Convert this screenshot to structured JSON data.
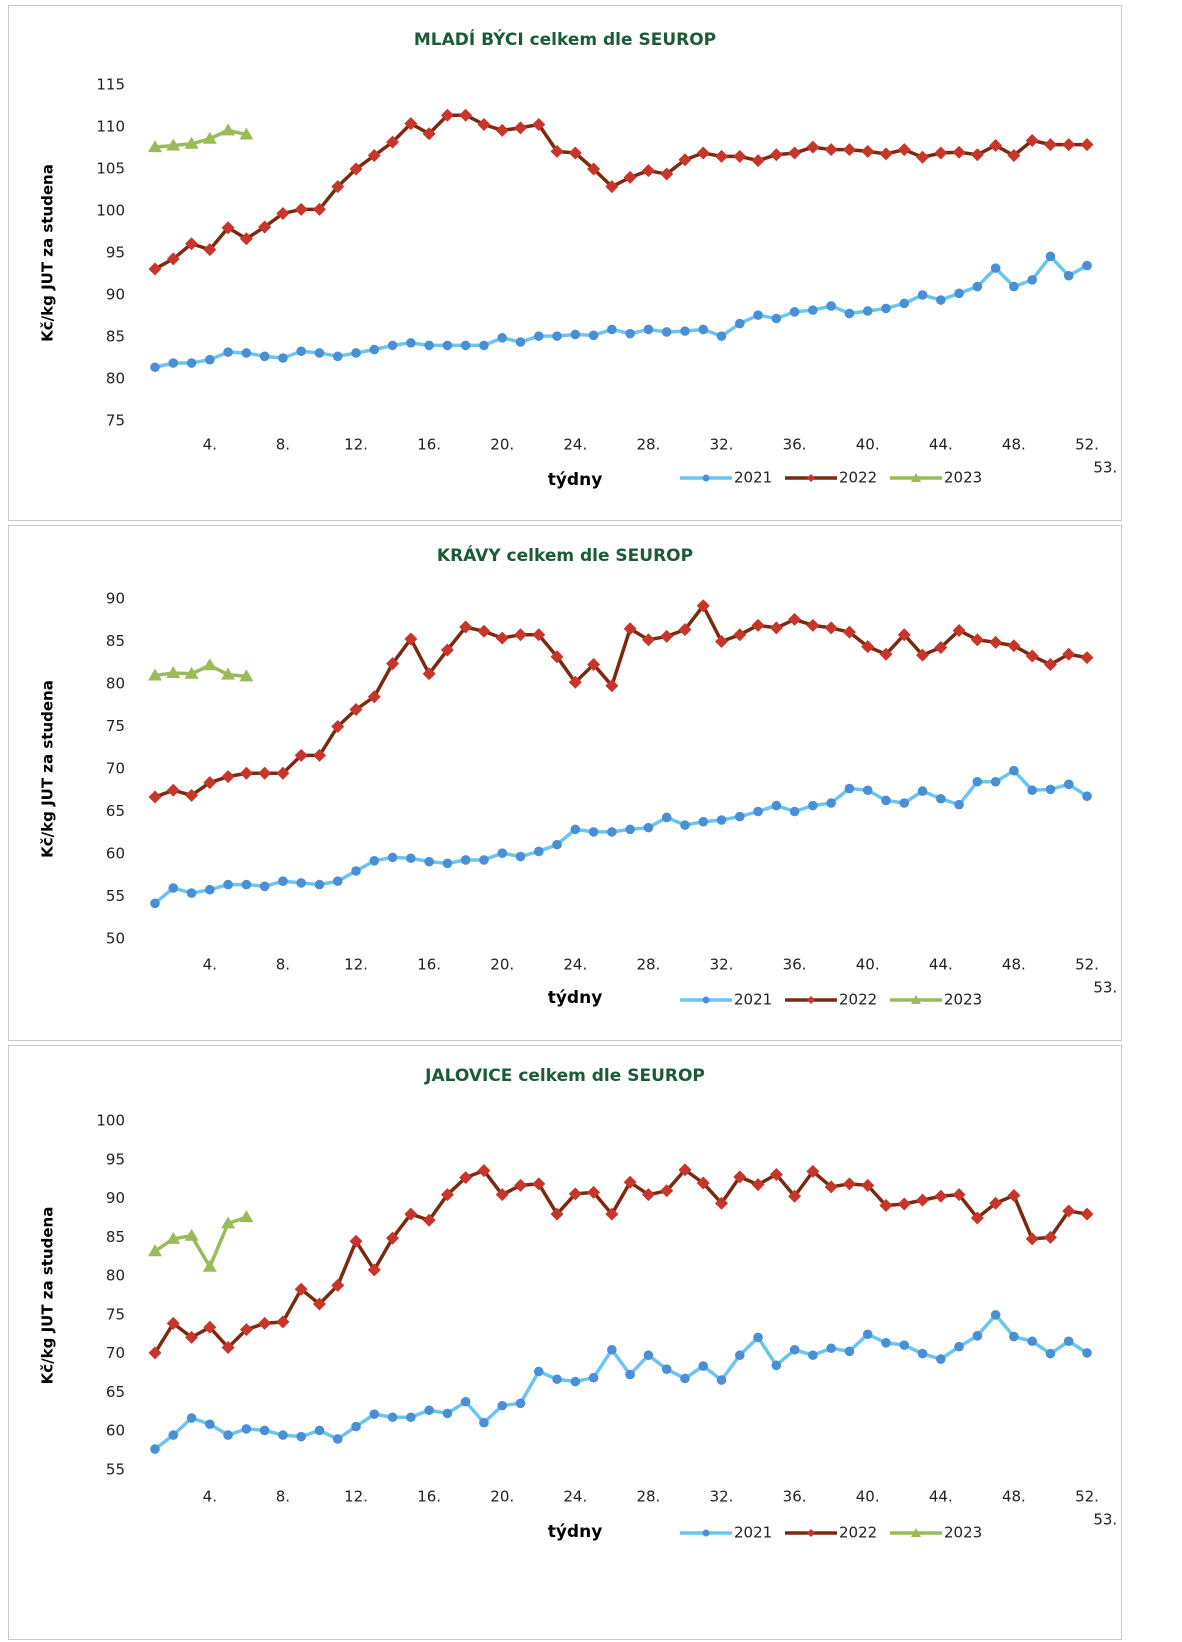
{
  "chart_data": [
    {
      "type": "line",
      "title": "MLADÍ BÝCI celkem dle SEUROP",
      "y_label": "Kč/kg JUT za studena",
      "x_label": "týdny",
      "categories": [
        null,
        null,
        null,
        "4.",
        null,
        null,
        null,
        "8.",
        null,
        null,
        null,
        "12.",
        null,
        null,
        null,
        "16.",
        null,
        null,
        null,
        "20.",
        null,
        null,
        null,
        "24.",
        null,
        null,
        null,
        "28.",
        null,
        null,
        null,
        "32.",
        null,
        null,
        null,
        "36.",
        null,
        null,
        null,
        "40.",
        null,
        null,
        null,
        "44.",
        null,
        null,
        null,
        "48.",
        null,
        null,
        null,
        "52.",
        "53."
      ],
      "ylim": [
        75,
        115
      ],
      "yticks": [
        75,
        80,
        85,
        90,
        95,
        100,
        105,
        110,
        115
      ],
      "grid": false,
      "series": [
        {
          "name": "2021",
          "color": "#6ac6f0",
          "marker": "circle",
          "marker_color": "#4a8fd6",
          "values": [
            81.4,
            81.9,
            81.9,
            82.3,
            83.2,
            83.1,
            82.7,
            82.5,
            83.3,
            83.1,
            82.7,
            83.1,
            83.5,
            84.0,
            84.3,
            84.0,
            84.0,
            84.0,
            84.0,
            84.9,
            84.4,
            85.1,
            85.1,
            85.3,
            85.2,
            85.9,
            85.4,
            85.9,
            85.6,
            85.7,
            85.9,
            85.1,
            86.6,
            87.6,
            87.2,
            88.0,
            88.2,
            88.7,
            87.8,
            88.1,
            88.4,
            89.0,
            90.0,
            89.4,
            90.2,
            91.0,
            93.2,
            91.0,
            91.8,
            94.6,
            92.3,
            93.5,
            null
          ]
        },
        {
          "name": "2022",
          "color": "#7a2a10",
          "marker": "diamond",
          "marker_color": "#c8352b",
          "values": [
            93.1,
            94.3,
            96.1,
            95.4,
            98.0,
            96.7,
            98.1,
            99.7,
            100.2,
            100.2,
            102.9,
            105.0,
            106.6,
            108.2,
            110.4,
            109.2,
            111.4,
            111.4,
            110.3,
            109.6,
            109.9,
            110.3,
            107.1,
            106.9,
            105.0,
            102.9,
            104.0,
            104.8,
            104.4,
            106.1,
            106.9,
            106.5,
            106.5,
            106.0,
            106.7,
            106.9,
            107.6,
            107.3,
            107.3,
            107.1,
            106.8,
            107.3,
            106.4,
            106.9,
            107.0,
            106.7,
            107.8,
            106.6,
            108.4,
            107.9,
            107.9,
            107.9,
            null
          ]
        },
        {
          "name": "2023",
          "color": "#9bbb59",
          "marker": "triangle",
          "marker_color": "#9bbb59",
          "values": [
            107.6,
            107.8,
            108.0,
            108.6,
            109.6,
            109.1,
            null,
            null,
            null,
            null,
            null,
            null,
            null,
            null,
            null,
            null,
            null,
            null,
            null,
            null,
            null,
            null,
            null,
            null,
            null,
            null,
            null,
            null,
            null,
            null,
            null,
            null,
            null,
            null,
            null,
            null,
            null,
            null,
            null,
            null,
            null,
            null,
            null,
            null,
            null,
            null,
            null,
            null,
            null,
            null,
            null,
            null,
            null
          ]
        }
      ]
    },
    {
      "type": "line",
      "title": "KRÁVY celkem dle SEUROP",
      "y_label": "Kč/kg JUT za studena",
      "x_label": "týdny",
      "categories": [
        null,
        null,
        null,
        "4.",
        null,
        null,
        null,
        "8.",
        null,
        null,
        null,
        "12.",
        null,
        null,
        null,
        "16.",
        null,
        null,
        null,
        "20.",
        null,
        null,
        null,
        "24.",
        null,
        null,
        null,
        "28.",
        null,
        null,
        null,
        "32.",
        null,
        null,
        null,
        "36.",
        null,
        null,
        null,
        "40.",
        null,
        null,
        null,
        "44.",
        null,
        null,
        null,
        "48.",
        null,
        null,
        null,
        "52.",
        "53."
      ],
      "ylim": [
        50,
        90
      ],
      "yticks": [
        50,
        55,
        60,
        65,
        70,
        75,
        80,
        85,
        90
      ],
      "grid": false,
      "series": [
        {
          "name": "2021",
          "color": "#6ac6f0",
          "marker": "circle",
          "marker_color": "#4a8fd6",
          "values": [
            54.2,
            56.0,
            55.4,
            55.8,
            56.4,
            56.4,
            56.2,
            56.8,
            56.6,
            56.4,
            56.8,
            58.0,
            59.2,
            59.6,
            59.5,
            59.1,
            58.9,
            59.3,
            59.3,
            60.1,
            59.7,
            60.3,
            61.1,
            62.9,
            62.6,
            62.6,
            62.9,
            63.1,
            64.3,
            63.4,
            63.8,
            64.0,
            64.4,
            65.0,
            65.7,
            65.0,
            65.7,
            66.0,
            67.7,
            67.5,
            66.3,
            66.0,
            67.4,
            66.5,
            65.8,
            68.5,
            68.5,
            69.8,
            67.5,
            67.6,
            68.2,
            66.8,
            null
          ]
        },
        {
          "name": "2022",
          "color": "#7a2a10",
          "marker": "diamond",
          "marker_color": "#c8352b",
          "values": [
            66.7,
            67.5,
            66.9,
            68.4,
            69.1,
            69.5,
            69.5,
            69.5,
            71.6,
            71.6,
            75.0,
            77.0,
            78.5,
            82.4,
            85.3,
            81.2,
            84.0,
            86.7,
            86.2,
            85.4,
            85.8,
            85.8,
            83.2,
            80.2,
            82.3,
            79.8,
            86.5,
            85.2,
            85.6,
            86.4,
            89.2,
            85.0,
            85.8,
            86.9,
            86.6,
            87.6,
            86.9,
            86.6,
            86.1,
            84.4,
            83.5,
            85.8,
            83.4,
            84.3,
            86.3,
            85.2,
            84.9,
            84.5,
            83.3,
            82.3,
            83.5,
            83.1,
            null
          ]
        },
        {
          "name": "2023",
          "color": "#9bbb59",
          "marker": "triangle",
          "marker_color": "#9bbb59",
          "values": [
            81.0,
            81.3,
            81.2,
            82.2,
            81.1,
            80.9,
            null,
            null,
            null,
            null,
            null,
            null,
            null,
            null,
            null,
            null,
            null,
            null,
            null,
            null,
            null,
            null,
            null,
            null,
            null,
            null,
            null,
            null,
            null,
            null,
            null,
            null,
            null,
            null,
            null,
            null,
            null,
            null,
            null,
            null,
            null,
            null,
            null,
            null,
            null,
            null,
            null,
            null,
            null,
            null,
            null,
            null,
            null
          ]
        }
      ]
    },
    {
      "type": "line",
      "title": "JALOVICE celkem dle SEUROP",
      "y_label": "Kč/kg JUT za studena",
      "x_label": "týdny",
      "categories": [
        null,
        null,
        null,
        "4.",
        null,
        null,
        null,
        "8.",
        null,
        null,
        null,
        "12.",
        null,
        null,
        null,
        "16.",
        null,
        null,
        null,
        "20.",
        null,
        null,
        null,
        "24.",
        null,
        null,
        null,
        "28.",
        null,
        null,
        null,
        "32.",
        null,
        null,
        null,
        "36.",
        null,
        null,
        null,
        "40.",
        null,
        null,
        null,
        "44.",
        null,
        null,
        null,
        "48.",
        null,
        null,
        null,
        "52.",
        "53."
      ],
      "ylim": [
        55,
        100
      ],
      "yticks": [
        55,
        60,
        65,
        70,
        75,
        80,
        85,
        90,
        95,
        100
      ],
      "grid": false,
      "series": [
        {
          "name": "2021",
          "color": "#6ac6f0",
          "marker": "circle",
          "marker_color": "#4a8fd6",
          "values": [
            57.7,
            59.5,
            61.7,
            60.9,
            59.5,
            60.3,
            60.1,
            59.5,
            59.3,
            60.1,
            59.0,
            60.6,
            62.2,
            61.8,
            61.8,
            62.7,
            62.3,
            63.8,
            61.1,
            63.3,
            63.6,
            67.7,
            66.7,
            66.4,
            66.9,
            70.5,
            67.3,
            69.8,
            68.0,
            66.8,
            68.4,
            66.6,
            69.8,
            72.1,
            68.5,
            70.5,
            69.8,
            70.7,
            70.3,
            72.5,
            71.4,
            71.1,
            70.0,
            69.3,
            70.9,
            72.3,
            75.0,
            72.2,
            71.6,
            70.0,
            71.6,
            70.1,
            null
          ]
        },
        {
          "name": "2022",
          "color": "#7a2a10",
          "marker": "diamond",
          "marker_color": "#c8352b",
          "values": [
            70.1,
            73.9,
            72.1,
            73.4,
            70.8,
            73.1,
            73.9,
            74.1,
            78.3,
            76.4,
            78.8,
            84.5,
            80.8,
            84.9,
            88.0,
            87.2,
            90.5,
            92.7,
            93.6,
            90.5,
            91.7,
            91.9,
            88.0,
            90.6,
            90.8,
            88.0,
            92.1,
            90.5,
            91.0,
            93.7,
            92.0,
            89.4,
            92.8,
            91.8,
            93.1,
            90.3,
            93.5,
            91.5,
            91.9,
            91.7,
            89.1,
            89.3,
            89.8,
            90.3,
            90.5,
            87.5,
            89.4,
            90.4,
            84.8,
            85.0,
            88.4,
            88.0,
            null
          ]
        },
        {
          "name": "2023",
          "color": "#9bbb59",
          "marker": "triangle",
          "marker_color": "#9bbb59",
          "values": [
            83.2,
            84.8,
            85.2,
            81.2,
            86.8,
            87.6,
            null,
            null,
            null,
            null,
            null,
            null,
            null,
            null,
            null,
            null,
            null,
            null,
            null,
            null,
            null,
            null,
            null,
            null,
            null,
            null,
            null,
            null,
            null,
            null,
            null,
            null,
            null,
            null,
            null,
            null,
            null,
            null,
            null,
            null,
            null,
            null,
            null,
            null,
            null,
            null,
            null,
            null,
            null,
            null,
            null,
            null,
            null
          ]
        }
      ]
    }
  ]
}
